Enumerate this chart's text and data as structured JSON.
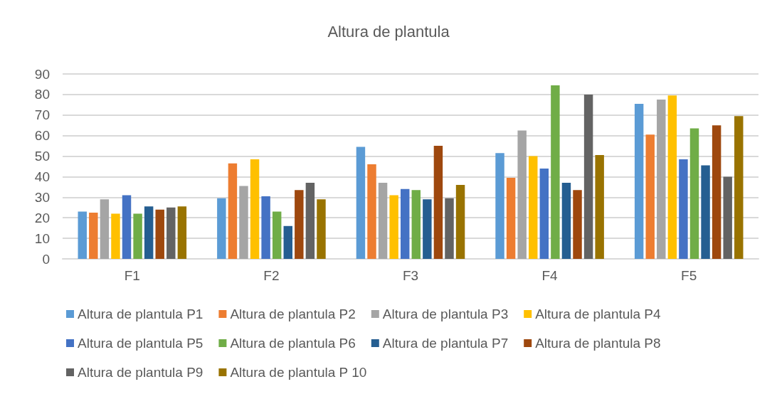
{
  "chart_data": {
    "type": "bar",
    "title": "Altura de plantula",
    "categories": [
      "F1",
      "F2",
      "F3",
      "F4",
      "F5"
    ],
    "series": [
      {
        "name": "Altura de plantula P1",
        "color": "#5b9bd5",
        "values": [
          23,
          29.5,
          54.5,
          51.5,
          75.5
        ]
      },
      {
        "name": "Altura de plantula P2",
        "color": "#ed7d31",
        "values": [
          22.5,
          46.5,
          46,
          39.5,
          60.5
        ]
      },
      {
        "name": "Altura de plantula P3",
        "color": "#a5a5a5",
        "values": [
          29,
          35.5,
          37,
          62.5,
          77.5
        ]
      },
      {
        "name": "Altura de plantula P4",
        "color": "#ffc000",
        "values": [
          22,
          48.5,
          31,
          50,
          79.5
        ]
      },
      {
        "name": "Altura de plantula P5",
        "color": "#4472c4",
        "values": [
          31,
          30.5,
          34,
          44,
          48.5
        ]
      },
      {
        "name": "Altura de plantula P6",
        "color": "#70ad47",
        "values": [
          22,
          23,
          33.5,
          84.5,
          63.5
        ]
      },
      {
        "name": "Altura de plantula P7",
        "color": "#255e91",
        "values": [
          25.5,
          16,
          29,
          37,
          45.5
        ]
      },
      {
        "name": "Altura de plantula P8",
        "color": "#9e480e",
        "values": [
          24,
          33.5,
          55,
          33.5,
          65
        ]
      },
      {
        "name": "Altura de plantula P9",
        "color": "#636363",
        "values": [
          25,
          37,
          29.5,
          80,
          40
        ]
      },
      {
        "name": "Altura de plantula P 10",
        "color": "#997300",
        "values": [
          25.5,
          29,
          36,
          50.5,
          69.5
        ]
      }
    ],
    "ylim": [
      0,
      90
    ],
    "yticks": [
      0,
      10,
      20,
      30,
      40,
      50,
      60,
      70,
      80,
      90
    ],
    "grid": "y",
    "legend": "bottom"
  }
}
